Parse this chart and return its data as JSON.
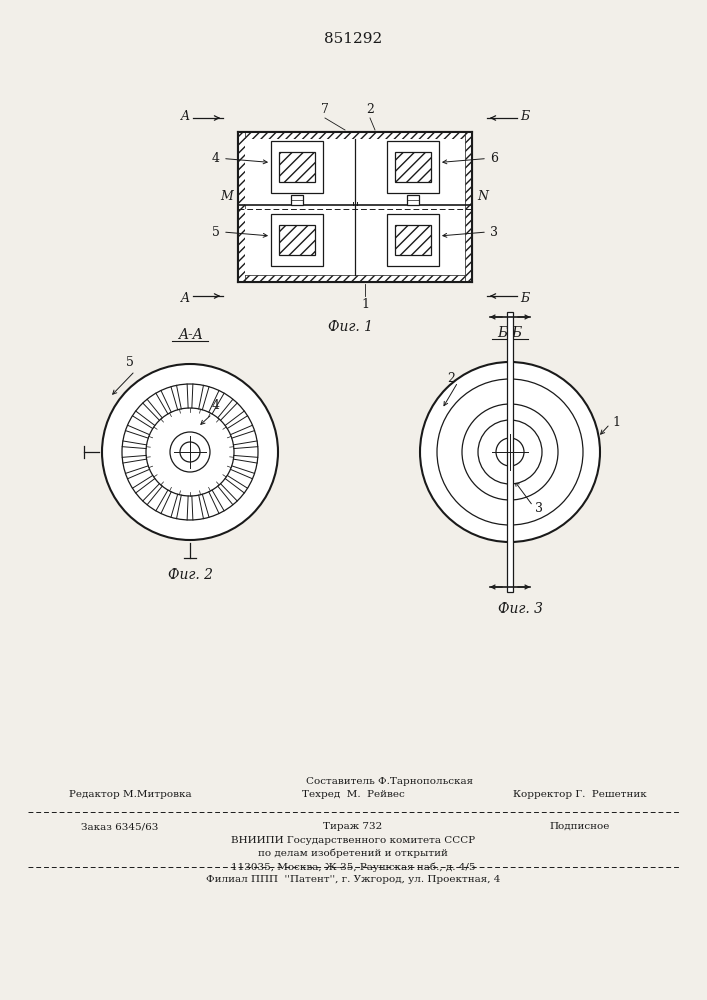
{
  "patent_number": "851292",
  "fig1_caption": "Фиг. 1",
  "fig2_caption": "Фиг. 2",
  "fig3_caption": "Фиг. 3",
  "fig1_label_A_top": "A",
  "fig1_label_B_top": "Б",
  "fig1_label_7": "7",
  "fig1_label_2": "2",
  "fig1_label_4": "4",
  "fig1_label_6": "6",
  "fig1_label_M": "M",
  "fig1_label_N": "N",
  "fig1_label_5": "5",
  "fig1_label_3": "3",
  "fig1_label_1": "1",
  "fig2_label_AA": "A-A",
  "fig2_label_5": "5",
  "fig2_label_4": "4",
  "fig3_label_BB": "Б-Б",
  "fig3_label_2": "2",
  "fig3_label_1": "1",
  "fig3_label_3": "3",
  "bottom_compose": "Составитель Ф.Тарнопольская",
  "bottom_editor": "Редактор М.Митровка",
  "bottom_tech": "Техред  М.  Рейвес",
  "bottom_corr": "Корректор Г.  Решетник",
  "bottom_order": "Заказ 6345/63",
  "bottom_tirazh": "Тираж 732",
  "bottom_podp": "Подписное",
  "bottom_vniip1": "ВНИИПИ Государственного комитета СССР",
  "bottom_vniip2": "по делам изобретений и открытий",
  "bottom_addr": "113035, Москва, Ж-35, Раушская наб., д. 4/5",
  "bottom_filial": "Филиал ППП  ''Патент'', г. Ужгород, ул. Проектная, 4",
  "bg_color": "#f2efe9",
  "line_color": "#1a1a1a"
}
